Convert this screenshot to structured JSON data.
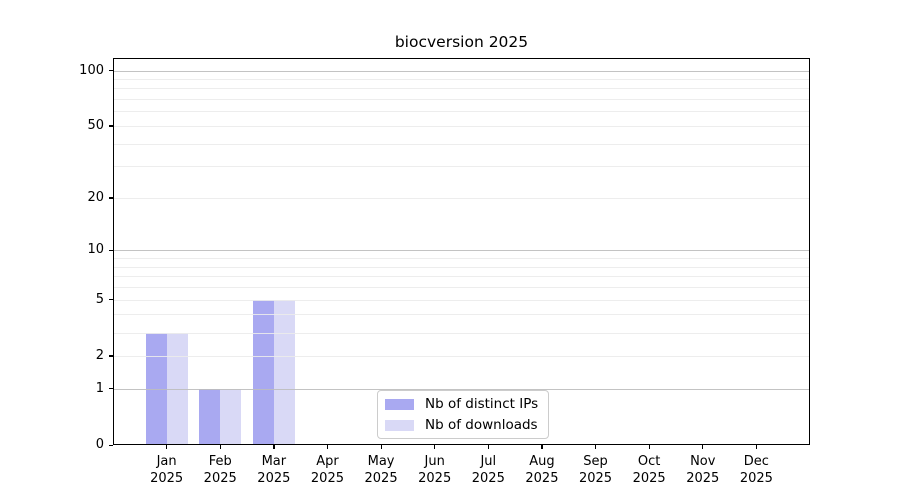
{
  "chart_data": {
    "type": "bar",
    "title": "biocversion 2025",
    "categories": [
      {
        "month": "Jan",
        "year": "2025"
      },
      {
        "month": "Feb",
        "year": "2025"
      },
      {
        "month": "Mar",
        "year": "2025"
      },
      {
        "month": "Apr",
        "year": "2025"
      },
      {
        "month": "May",
        "year": "2025"
      },
      {
        "month": "Jun",
        "year": "2025"
      },
      {
        "month": "Jul",
        "year": "2025"
      },
      {
        "month": "Aug",
        "year": "2025"
      },
      {
        "month": "Sep",
        "year": "2025"
      },
      {
        "month": "Oct",
        "year": "2025"
      },
      {
        "month": "Nov",
        "year": "2025"
      },
      {
        "month": "Dec",
        "year": "2025"
      }
    ],
    "series": [
      {
        "name": "Nb of distinct IPs",
        "color": "#a9a9f1",
        "values": [
          3,
          1,
          5,
          0,
          0,
          0,
          0,
          0,
          0,
          0,
          0,
          0
        ]
      },
      {
        "name": "Nb of downloads",
        "color": "#d9d9f6",
        "values": [
          3,
          1,
          5,
          0,
          0,
          0,
          0,
          0,
          0,
          0,
          0,
          0
        ]
      }
    ],
    "yticks": [
      0,
      1,
      2,
      5,
      10,
      20,
      50,
      100
    ],
    "scale": "log10(value+1)",
    "ylim": [
      0,
      117
    ],
    "xlabel": "",
    "ylabel": "",
    "grid": {
      "on": true,
      "major": [
        1,
        10,
        100
      ],
      "minor": [
        2,
        3,
        4,
        5,
        6,
        7,
        8,
        9,
        20,
        30,
        40,
        50,
        60,
        70,
        80,
        90
      ]
    },
    "legend_position": "lower center"
  },
  "colors": {
    "background": "#ffffff",
    "axis": "#000000",
    "text": "#000000",
    "grid_major": "#bdbdbd",
    "grid_minor": "#ebebeb",
    "legend_border": "#cccccc"
  }
}
